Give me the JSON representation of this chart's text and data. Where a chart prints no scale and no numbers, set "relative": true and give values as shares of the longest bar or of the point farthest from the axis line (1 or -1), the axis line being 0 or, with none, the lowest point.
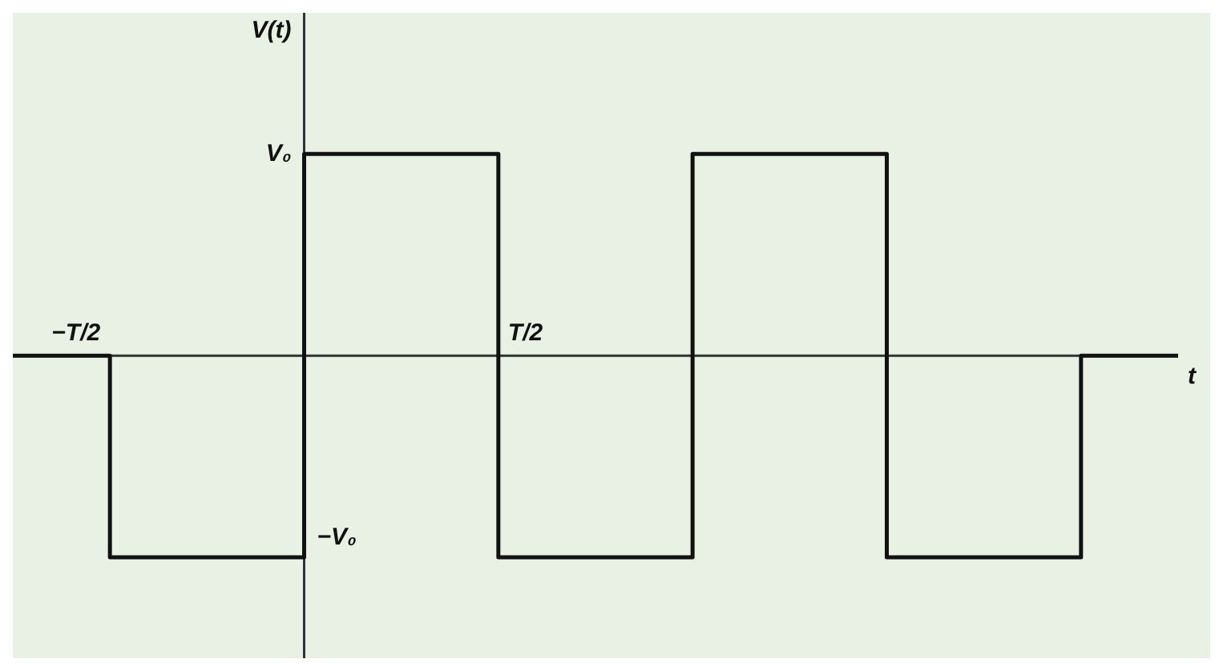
{
  "chart_data": {
    "type": "step",
    "relative": true,
    "xlabel": "t",
    "ylabel": "V(t)",
    "categories": [
      null,
      null,
      null,
      null,
      null,
      null,
      null
    ],
    "values": [
      0,
      -1,
      1,
      -1,
      1,
      -1,
      0
    ],
    "color": "#111111",
    "marker": "none",
    "legend": false,
    "annotations": [
      "V₀",
      "−T/2",
      "T/2",
      "−V₀"
    ]
  }
}
